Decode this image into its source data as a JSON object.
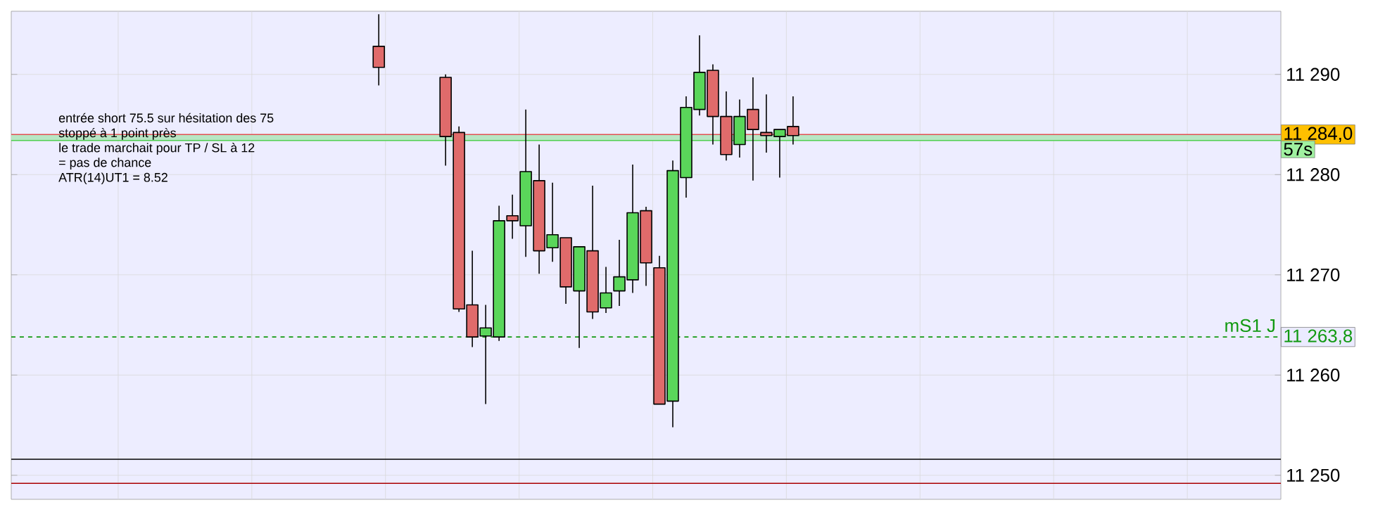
{
  "chart_data": {
    "type": "candlestick",
    "categories": [
      null,
      null,
      null,
      null,
      null,
      null,
      null,
      null,
      null,
      null,
      null,
      null,
      null,
      null,
      null,
      null,
      null,
      null,
      null,
      null,
      null,
      null,
      null,
      null,
      null,
      null,
      null,
      null,
      null,
      null,
      null,
      null,
      null,
      null,
      null,
      null,
      null,
      null,
      null,
      null,
      null,
      null,
      null,
      null,
      null,
      null,
      null,
      null,
      null,
      null,
      null,
      null,
      null,
      null,
      null,
      null,
      null,
      null,
      null,
      null,
      null,
      null,
      null,
      null,
      null,
      null,
      null,
      null,
      null,
      null,
      null,
      null,
      null,
      null,
      null,
      null,
      null,
      null,
      null,
      null,
      null,
      null,
      null,
      null,
      null,
      null,
      null,
      null,
      null,
      null,
      null,
      null,
      null,
      null,
      null
    ],
    "ohlc": [
      null,
      null,
      null,
      null,
      null,
      null,
      null,
      null,
      null,
      null,
      null,
      null,
      null,
      null,
      null,
      null,
      null,
      null,
      null,
      null,
      null,
      null,
      null,
      null,
      null,
      null,
      null,
      [
        11292.8,
        11296.0,
        11288.9,
        11290.7
      ],
      null,
      null,
      null,
      null,
      [
        11289.7,
        11290.0,
        11280.9,
        11283.8
      ],
      [
        11284.2,
        11284.8,
        11266.3,
        11266.6
      ],
      [
        11267.0,
        11272.4,
        11262.8,
        11263.8
      ],
      [
        11263.9,
        11267.0,
        11257.1,
        11264.7
      ],
      [
        11263.8,
        11276.9,
        11263.4,
        11275.4
      ],
      [
        11275.9,
        11278.0,
        11273.6,
        11275.4
      ],
      [
        11274.9,
        11286.5,
        11271.8,
        11280.3
      ],
      [
        11279.4,
        11283.0,
        11270.1,
        11272.4
      ],
      [
        11272.7,
        11279.2,
        11271.3,
        11274.0
      ],
      [
        11273.7,
        11273.7,
        11267.1,
        11268.8
      ],
      [
        11268.4,
        11272.8,
        11262.7,
        11272.8
      ],
      [
        11272.4,
        11278.9,
        11265.6,
        11266.3
      ],
      [
        11266.7,
        11270.8,
        11266.2,
        11268.2
      ],
      [
        11268.4,
        11273.5,
        11266.9,
        11269.8
      ],
      [
        11269.5,
        11281.0,
        11268.2,
        11276.2
      ],
      [
        11276.4,
        11276.8,
        11268.9,
        11271.2
      ],
      [
        11270.7,
        11271.9,
        11257.1,
        11257.1
      ],
      [
        11257.4,
        11281.4,
        11254.8,
        11280.4
      ],
      [
        11279.7,
        11287.8,
        11277.7,
        11286.7
      ],
      [
        11286.5,
        11293.9,
        11285.9,
        11290.2
      ],
      [
        11290.4,
        11291.0,
        11283.0,
        11285.8
      ],
      [
        11285.8,
        11288.3,
        11281.4,
        11282.0
      ],
      [
        11283.0,
        11287.5,
        11281.7,
        11285.8
      ],
      [
        11286.5,
        11289.7,
        11279.4,
        11284.5
      ],
      [
        11284.2,
        11288.0,
        11282.2,
        11283.9
      ],
      [
        11283.8,
        11284.5,
        11279.7,
        11284.5
      ],
      [
        11284.8,
        11287.8,
        11283.0,
        11283.9
      ],
      null,
      null,
      null,
      null,
      null,
      null,
      null,
      null,
      null,
      null,
      null,
      null,
      null,
      null,
      null,
      null,
      null,
      null,
      null,
      null,
      null,
      null,
      null,
      null,
      null,
      null,
      null,
      null,
      null,
      null,
      null,
      null,
      null,
      null,
      null,
      null
    ],
    "colors": [
      null,
      null,
      null,
      null,
      null,
      null,
      null,
      null,
      null,
      null,
      null,
      null,
      null,
      null,
      null,
      null,
      null,
      null,
      null,
      null,
      null,
      null,
      null,
      null,
      null,
      null,
      null,
      "#e06b6b",
      null,
      null,
      null,
      null,
      "#e06b6b",
      "#e06b6b",
      "#e06b6b",
      "#5ad65a",
      "#5ad65a",
      "#e06b6b",
      "#5ad65a",
      "#e06b6b",
      "#5ad65a",
      "#e06b6b",
      "#5ad65a",
      "#e06b6b",
      "#5ad65a",
      "#5ad65a",
      "#5ad65a",
      "#e06b6b",
      "#e06b6b",
      "#5ad65a",
      "#5ad65a",
      "#5ad65a",
      "#e06b6b",
      "#e06b6b",
      "#5ad65a",
      "#e06b6b",
      "#e06b6b",
      "#5ad65a",
      "#e06b6b",
      null,
      null,
      null,
      null,
      null,
      null,
      null,
      null,
      null,
      null,
      null,
      null,
      null,
      null,
      null,
      null,
      null,
      null,
      null,
      null,
      null,
      null,
      null,
      null,
      null,
      null,
      null,
      null,
      null,
      null,
      null,
      null,
      null,
      null,
      null,
      null
    ],
    "ylim": [
      11247.6,
      11296.3
    ],
    "yticks": [
      {
        "value": 11250,
        "label": "11 250"
      },
      {
        "value": 11260,
        "label": "11 260"
      },
      {
        "value": 11270,
        "label": "11 270"
      },
      {
        "value": 11280,
        "label": "11 280"
      },
      {
        "value": 11290,
        "label": "11 290"
      }
    ],
    "grid": true,
    "bands": [
      {
        "axis": "y",
        "from": 11283.4,
        "to": 11284.0,
        "color": "#b8e6c4"
      }
    ],
    "ref_lines": [
      {
        "axis": "y",
        "value": 11284.0,
        "label": "11 284,0",
        "color": "#e05050"
      },
      {
        "axis": "y",
        "value": 11283.4,
        "label": "57s",
        "color": "#50d050"
      },
      {
        "axis": "y",
        "value": 11263.8,
        "label": "mS1 J",
        "color": "#119911",
        "line_style": "dashed"
      },
      {
        "axis": "y",
        "value": 11251.6,
        "color": "#000000"
      },
      {
        "axis": "y",
        "value": 11249.2,
        "color": "#aa0000"
      }
    ],
    "annotations": [
      "entrée short 75.5 sur hésitation des 75",
      "stoppé à 1 point près",
      "le trade marchait pour TP / SL à 12",
      "= pas de chance",
      "ATR(14)UT1 = 8.52",
      "11 263,8"
    ]
  }
}
